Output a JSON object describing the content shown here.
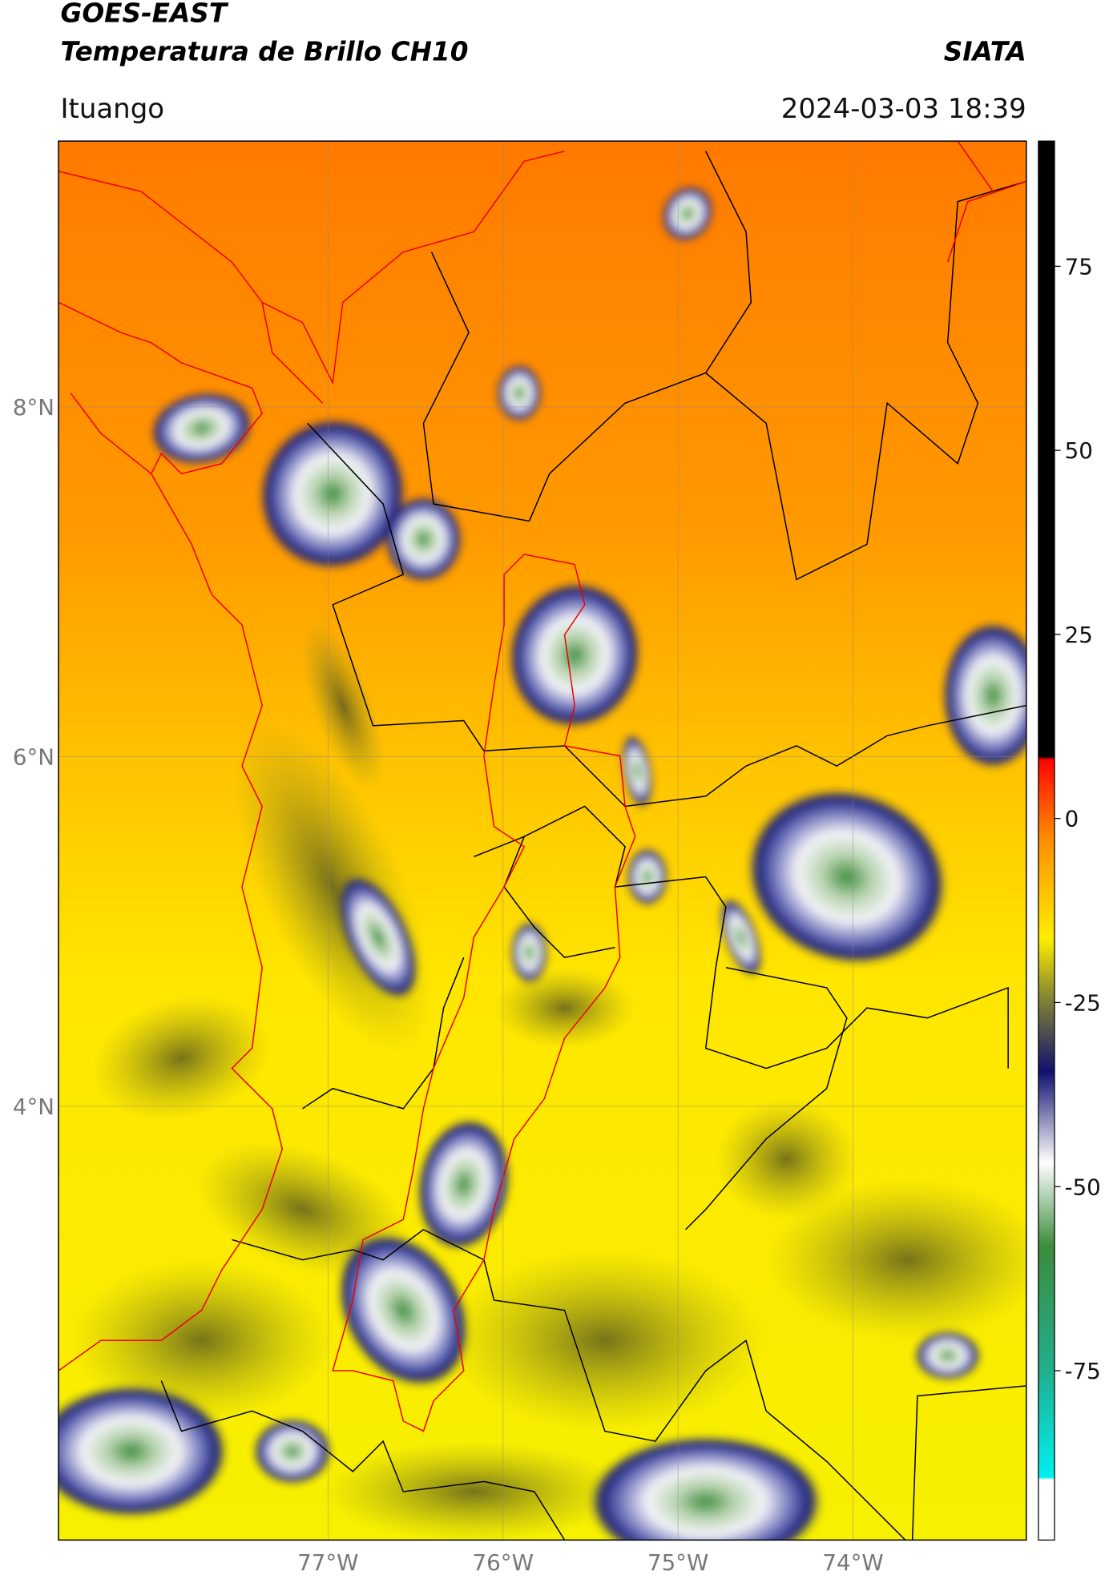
{
  "chart_data": {
    "type": "map",
    "title": "GOES-EAST",
    "subtitle": "Temperatura de Brillo CH10",
    "source": "SIATA",
    "region": "Ituango",
    "datetime": "2024-03-03 18:39",
    "xlim": [
      -78.54,
      -73.01
    ],
    "ylim": [
      1.52,
      9.52
    ],
    "xticks": [
      {
        "value": -77,
        "label": "77°W"
      },
      {
        "value": -76,
        "label": "76°W"
      },
      {
        "value": -75,
        "label": "75°W"
      },
      {
        "value": -74,
        "label": "74°W"
      }
    ],
    "yticks": [
      {
        "value": 4,
        "label": "4°N"
      },
      {
        "value": 6,
        "label": "6°N"
      },
      {
        "value": 8,
        "label": "8°N"
      }
    ],
    "grid": true,
    "colorbar": {
      "ylim": [
        -98,
        92
      ],
      "yticks": [
        -75,
        -50,
        -25,
        0,
        25,
        50,
        75
      ]
    }
  }
}
